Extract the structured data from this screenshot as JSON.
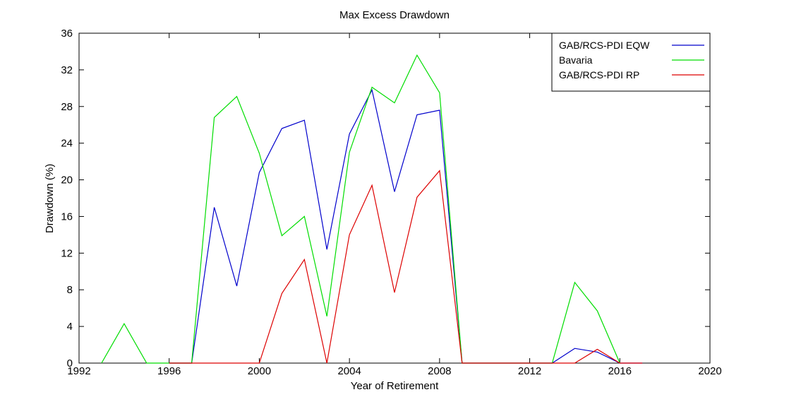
{
  "chart_data": {
    "type": "line",
    "title": "Max Excess Drawdown",
    "xlabel": "Year of Retirement",
    "ylabel": "Drawdown (%)",
    "xlim": [
      1992,
      2020
    ],
    "ylim": [
      0,
      36
    ],
    "xticks": [
      1992,
      1996,
      2000,
      2004,
      2008,
      2012,
      2016,
      2020
    ],
    "yticks": [
      0,
      4,
      8,
      12,
      16,
      20,
      24,
      28,
      32,
      36
    ],
    "grid": false,
    "legend_position": "top-right",
    "series": [
      {
        "name": "GAB/RCS-PDI EQW",
        "color": "#0000cc",
        "x": [
          1996,
          1997,
          1998,
          1999,
          2000,
          2001,
          2002,
          2003,
          2004,
          2005,
          2006,
          2007,
          2008,
          2009,
          2010,
          2011,
          2012,
          2013,
          2014,
          2015,
          2016,
          2017
        ],
        "y": [
          0,
          0,
          17.0,
          8.4,
          20.8,
          25.6,
          26.5,
          12.4,
          25.0,
          29.8,
          18.7,
          27.1,
          27.6,
          0,
          0,
          0,
          0,
          0,
          1.6,
          1.2,
          0,
          0
        ]
      },
      {
        "name": "Bavaria",
        "color": "#00dd00",
        "x": [
          1993,
          1994,
          1995,
          1996,
          1997,
          1998,
          1999,
          2000,
          2001,
          2002,
          2003,
          2004,
          2005,
          2006,
          2007,
          2008,
          2009,
          2010,
          2011,
          2012,
          2013,
          2014,
          2015,
          2016
        ],
        "y": [
          0,
          4.3,
          0,
          0,
          0,
          26.8,
          29.1,
          22.9,
          13.9,
          16.0,
          5.1,
          23.0,
          30.1,
          28.4,
          33.6,
          29.5,
          0,
          0,
          0,
          0,
          0,
          8.8,
          5.7,
          0
        ]
      },
      {
        "name": "GAB/RCS-PDI RP",
        "color": "#dd0000",
        "x": [
          1996,
          1997,
          1998,
          1999,
          2000,
          2001,
          2002,
          2003,
          2004,
          2005,
          2006,
          2007,
          2008,
          2009,
          2010,
          2011,
          2012,
          2013,
          2014,
          2015,
          2016,
          2017
        ],
        "y": [
          0,
          0,
          0,
          0,
          0,
          7.6,
          11.3,
          0,
          14.0,
          19.4,
          7.7,
          18.1,
          21.0,
          0,
          0,
          0,
          0,
          0,
          0,
          1.5,
          0,
          0
        ]
      }
    ]
  }
}
